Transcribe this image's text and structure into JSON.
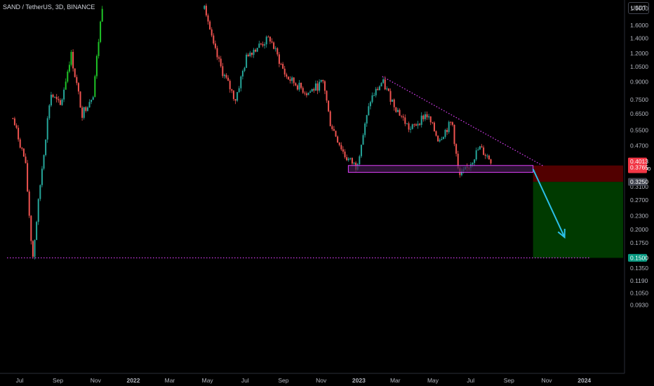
{
  "header": {
    "symbol_title": "SAND / TetherUS, 3D, BINANCE",
    "currency_button": "USDT"
  },
  "colors": {
    "background": "#000000",
    "up_candle": "#26a69a",
    "up_candle_bright": "#1fc427",
    "down_candle": "#ef5350",
    "trendline": "#e040fb",
    "zone_fill": "#3d1a4a",
    "zone_border": "#e040fb",
    "stop_zone": "#5b0000",
    "target_zone": "#003d00",
    "arrow": "#2bc0e8",
    "price_tag_red": "#f23645",
    "price_tag_green": "#089981",
    "price_tag_grey": "#434651"
  },
  "chart_data": {
    "type": "candlestick",
    "title": "SAND / TetherUS, 3D, BINANCE",
    "y_scale": "log",
    "y_ticks": [
      "1.9000",
      "1.6000",
      "1.4000",
      "1.2000",
      "1.0500",
      "0.9000",
      "0.7500",
      "0.6500",
      "0.5500",
      "0.4700",
      "0.3100",
      "0.2700",
      "0.2300",
      "0.2000",
      "0.1750",
      "0.1350",
      "0.1190",
      "0.1050",
      "0.0930"
    ],
    "x_ticks": [
      "Jul",
      "Sep",
      "Nov",
      "2022",
      "Mar",
      "May",
      "Jul",
      "Sep",
      "Nov",
      "2023",
      "Mar",
      "May",
      "Jul",
      "Sep",
      "Nov",
      "2024"
    ],
    "price_path": [
      {
        "date": "2021-06-20",
        "price": 0.62
      },
      {
        "date": "2021-07-10",
        "price": 0.4
      },
      {
        "date": "2021-07-22",
        "price": 0.148
      },
      {
        "date": "2021-08-05",
        "price": 0.35
      },
      {
        "date": "2021-08-20",
        "price": 0.8
      },
      {
        "date": "2021-09-05",
        "price": 0.7
      },
      {
        "date": "2021-09-22",
        "price": 1.2
      },
      {
        "date": "2021-10-10",
        "price": 0.65
      },
      {
        "date": "2021-10-28",
        "price": 0.8
      },
      {
        "date": "2021-11-12",
        "price": 2.0
      },
      {
        "date": "2022-04-25",
        "price": 2.1
      },
      {
        "date": "2022-05-10",
        "price": 1.3
      },
      {
        "date": "2022-05-25",
        "price": 1.0
      },
      {
        "date": "2022-06-15",
        "price": 0.75
      },
      {
        "date": "2022-07-05",
        "price": 1.2
      },
      {
        "date": "2022-08-10",
        "price": 1.4
      },
      {
        "date": "2022-09-05",
        "price": 0.95
      },
      {
        "date": "2022-10-10",
        "price": 0.8
      },
      {
        "date": "2022-11-05",
        "price": 0.9
      },
      {
        "date": "2022-11-15",
        "price": 0.6
      },
      {
        "date": "2022-12-10",
        "price": 0.42
      },
      {
        "date": "2022-12-28",
        "price": 0.38
      },
      {
        "date": "2023-01-20",
        "price": 0.75
      },
      {
        "date": "2023-02-08",
        "price": 0.9
      },
      {
        "date": "2023-03-01",
        "price": 0.7
      },
      {
        "date": "2023-03-25",
        "price": 0.55
      },
      {
        "date": "2023-04-20",
        "price": 0.65
      },
      {
        "date": "2023-05-10",
        "price": 0.5
      },
      {
        "date": "2023-06-01",
        "price": 0.6
      },
      {
        "date": "2023-06-12",
        "price": 0.34
      },
      {
        "date": "2023-06-25",
        "price": 0.37
      },
      {
        "date": "2023-07-15",
        "price": 0.46
      },
      {
        "date": "2023-08-05",
        "price": 0.4
      }
    ],
    "annotations": {
      "descending_trendline": {
        "start": {
          "date": "2023-02-08",
          "price": 0.95
        },
        "end": {
          "date": "2023-10-28",
          "price": 0.38
        },
        "style": "dotted"
      },
      "support_zone": {
        "date_from": "2022-12-15",
        "date_to": "2023-10-10",
        "price_low": 0.358,
        "price_high": 0.384
      },
      "stop_zone": {
        "date_from": "2023-10-10",
        "price_low": 0.325,
        "price_high": 0.384
      },
      "target_zone": {
        "date_from": "2023-10-10",
        "price_low": 0.15,
        "price_high": 0.325
      },
      "target_line": {
        "price": 0.15,
        "style": "dotted"
      },
      "projection_arrow": {
        "from": {
          "date": "2023-10-10",
          "price": 0.37
        },
        "to": {
          "date": "2023-11-30",
          "price": 0.185
        }
      }
    },
    "price_labels": [
      {
        "label": "0.4013",
        "sub": "15:32:50",
        "kind": "current",
        "color": "#f23645"
      },
      {
        "label": "0.3765",
        "kind": "stop",
        "color": "#f23645"
      },
      {
        "label": "0.3250",
        "kind": "entry",
        "color": "#434651"
      },
      {
        "label": "0.1500",
        "kind": "target",
        "color": "#089981"
      }
    ]
  }
}
